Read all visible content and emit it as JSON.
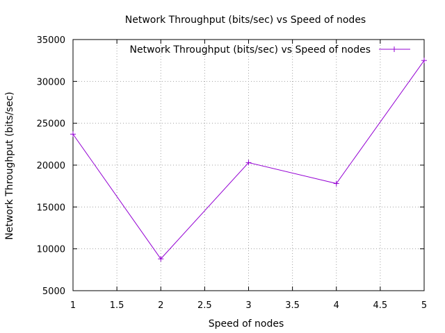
{
  "chart_data": {
    "type": "line",
    "title": "Network Throughput (bits/sec) vs Speed of nodes",
    "xlabel": "Speed of nodes",
    "ylabel": "Network Throughput (bits/sec)",
    "xlim": [
      1,
      5
    ],
    "ylim": [
      5000,
      35000
    ],
    "grid": true,
    "legend_position": "top-right",
    "x_ticks": [
      1,
      1.5,
      2,
      2.5,
      3,
      3.5,
      4,
      4.5,
      5
    ],
    "x_tick_labels": [
      "1",
      "1.5",
      "2",
      "2.5",
      "3",
      "3.5",
      "4",
      "4.5",
      "5"
    ],
    "y_ticks": [
      5000,
      10000,
      15000,
      20000,
      25000,
      30000,
      35000
    ],
    "y_tick_labels": [
      "5000",
      "10000",
      "15000",
      "20000",
      "25000",
      "30000",
      "35000"
    ],
    "series": [
      {
        "name": "Network Throughput (bits/sec) vs Speed of nodes",
        "color": "#9400d3",
        "marker": "plus",
        "x": [
          1,
          2,
          3,
          4,
          5
        ],
        "y": [
          23700,
          8800,
          20300,
          17800,
          32500
        ]
      }
    ]
  }
}
